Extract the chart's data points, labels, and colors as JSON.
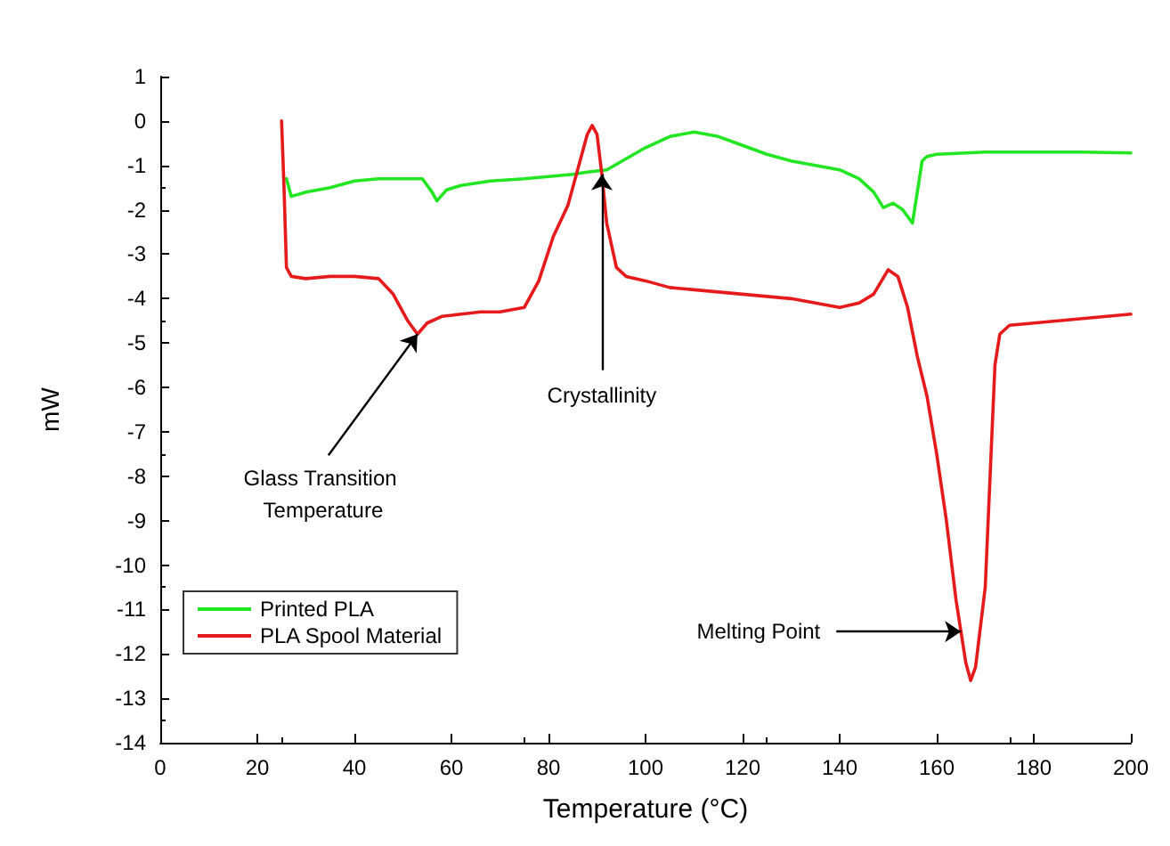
{
  "chart_data": {
    "type": "line",
    "xlabel": "Temperature (°C)",
    "ylabel": "mW",
    "xlim": [
      0,
      200
    ],
    "xticks": [
      0,
      20,
      40,
      60,
      80,
      100,
      120,
      140,
      160,
      180,
      200
    ],
    "ylim": [
      -14,
      1
    ],
    "yticks": [
      -14,
      -13,
      -12,
      -11,
      -10,
      -9,
      -8,
      -7,
      -6,
      -5,
      -4,
      -3,
      -2,
      -1,
      0,
      1
    ],
    "grid": false,
    "legend": "bottom left",
    "marker": "none",
    "line_style": "solid",
    "series": [
      {
        "name": "Printed PLA",
        "color": "#22e622",
        "x": [
          26,
          27,
          30,
          35,
          40,
          45,
          50,
          54,
          56,
          57,
          59,
          62,
          68,
          75,
          80,
          85,
          88,
          92,
          96,
          100,
          105,
          110,
          115,
          120,
          125,
          130,
          135,
          140,
          144,
          147,
          149,
          151,
          153,
          155,
          156,
          157,
          158,
          160,
          170,
          180,
          190,
          200
        ],
        "values": [
          -1.3,
          -1.7,
          -1.6,
          -1.5,
          -1.35,
          -1.3,
          -1.3,
          -1.3,
          -1.6,
          -1.8,
          -1.55,
          -1.45,
          -1.35,
          -1.3,
          -1.25,
          -1.2,
          -1.15,
          -1.1,
          -0.85,
          -0.6,
          -0.35,
          -0.25,
          -0.35,
          -0.55,
          -0.75,
          -0.9,
          -1.0,
          -1.1,
          -1.3,
          -1.6,
          -1.95,
          -1.85,
          -2.0,
          -2.3,
          -1.6,
          -0.9,
          -0.8,
          -0.75,
          -0.7,
          -0.7,
          -0.7,
          -0.72
        ]
      },
      {
        "name": "PLA Spool Material",
        "color": "#e61a1a",
        "x": [
          25,
          25.5,
          26,
          27,
          30,
          35,
          40,
          45,
          48,
          51,
          53,
          55,
          58,
          62,
          66,
          70,
          75,
          78,
          81,
          84,
          86,
          88,
          89,
          90,
          91,
          92,
          94,
          96,
          100,
          105,
          110,
          115,
          120,
          125,
          130,
          135,
          140,
          144,
          147,
          150,
          152,
          154,
          156,
          158,
          160,
          162,
          164,
          165,
          166,
          167,
          168,
          170,
          171,
          172,
          173,
          175,
          180,
          185,
          190,
          195,
          200
        ],
        "values": [
          0,
          -1.5,
          -3.3,
          -3.5,
          -3.55,
          -3.5,
          -3.5,
          -3.55,
          -3.9,
          -4.5,
          -4.8,
          -4.55,
          -4.4,
          -4.35,
          -4.3,
          -4.3,
          -4.2,
          -3.6,
          -2.6,
          -1.9,
          -1.1,
          -0.3,
          -0.1,
          -0.3,
          -1.2,
          -2.3,
          -3.3,
          -3.5,
          -3.6,
          -3.75,
          -3.8,
          -3.85,
          -3.9,
          -3.95,
          -4.0,
          -4.1,
          -4.2,
          -4.1,
          -3.9,
          -3.35,
          -3.5,
          -4.2,
          -5.3,
          -6.2,
          -7.5,
          -9.0,
          -10.8,
          -11.5,
          -12.2,
          -12.6,
          -12.3,
          -10.5,
          -8.0,
          -5.5,
          -4.8,
          -4.6,
          -4.55,
          -4.5,
          -4.45,
          -4.4,
          -4.35
        ]
      }
    ],
    "annotations": [
      {
        "text": "Glass Transition Temperature",
        "x": 53,
        "y": -4.8
      },
      {
        "text": "Crystallinity",
        "x": 91,
        "y": -1.2
      },
      {
        "text": "Melting Point",
        "x": 165,
        "y": -11.5
      }
    ]
  }
}
